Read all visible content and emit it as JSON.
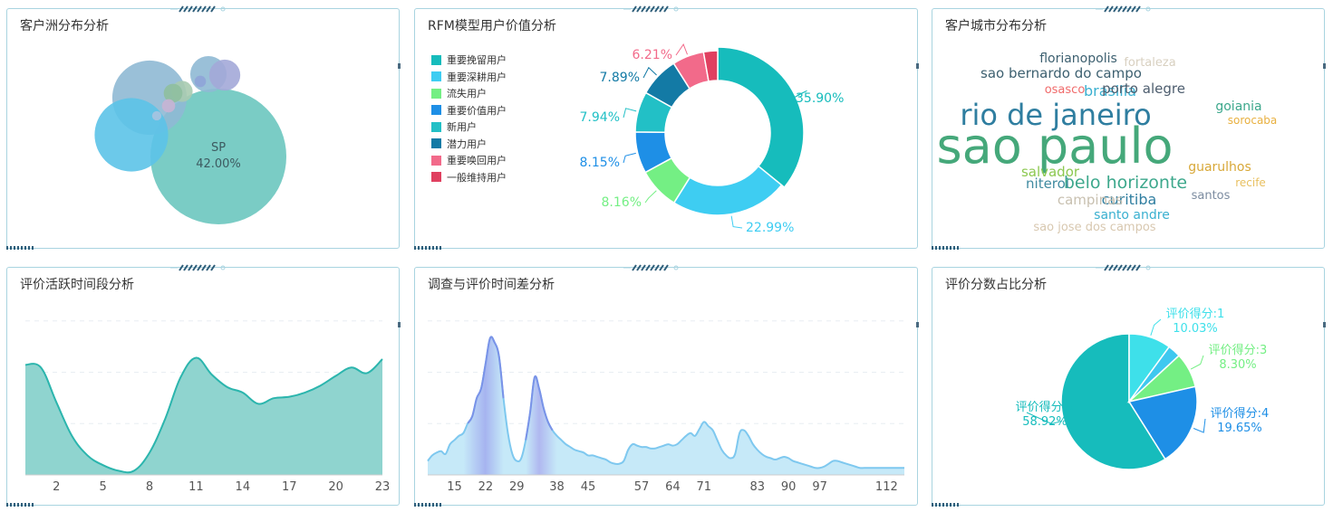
{
  "panels": {
    "continent": {
      "title": "客户洲分布分析"
    },
    "rfm": {
      "title": "RFM模型用户价值分析"
    },
    "city": {
      "title": "客户城市分布分析"
    },
    "active": {
      "title": "评价活跃时间段分析"
    },
    "timediff": {
      "title": "调查与评价时间差分析"
    },
    "score": {
      "title": "评价分数占比分析"
    }
  },
  "colors": {
    "teal": "#2bb5ad",
    "tealFill": "#8fd4cf",
    "border": "#a9d4e0",
    "deco": "#2f5e7a"
  },
  "chart_data": [
    {
      "id": "continent",
      "type": "bubble",
      "title": "客户洲分布分析",
      "series": [
        {
          "name": "SP",
          "value": 42.0,
          "label": "SP",
          "value_label": "42.00%",
          "color": "#6cc7bf"
        },
        {
          "name": "",
          "value": 12.6,
          "color": "#8fb9d4"
        },
        {
          "name": "",
          "value": 12.3,
          "color": "#5cc3e8"
        },
        {
          "name": "",
          "value": 3.0,
          "color": "#8fb9d4"
        },
        {
          "name": "",
          "value": 2.2,
          "color": "#a3a8d8"
        },
        {
          "name": "",
          "value": 1.0,
          "color": "#a9cbb0"
        },
        {
          "name": "",
          "value": 0.8,
          "color": "#8fbf9f"
        },
        {
          "name": "",
          "value": 0.4,
          "color": "#c8b4d4"
        },
        {
          "name": "",
          "value": 0.3,
          "color": "#8fa4d8"
        },
        {
          "name": "",
          "value": 0.2,
          "color": "#a9c4e0"
        }
      ]
    },
    {
      "id": "rfm",
      "type": "pie",
      "subtype": "donut",
      "title": "RFM模型用户价值分析",
      "categories": [
        "重要挽留用户",
        "重要深耕用户",
        "流失用户",
        "重要价值用户",
        "新用户",
        "潜力用户",
        "重要唤回用户",
        "一般维持用户"
      ],
      "values": [
        35.9,
        22.99,
        8.16,
        8.15,
        7.94,
        7.89,
        6.21,
        2.76
      ],
      "labels": [
        "35.90%",
        "22.99%",
        "8.16%",
        "8.15%",
        "7.94%",
        "7.89%",
        "6.21%",
        ""
      ],
      "colors": [
        "#16bcbc",
        "#3ecdf2",
        "#74ef84",
        "#1e8fe6",
        "#22c0c6",
        "#137aa5",
        "#f26a8a",
        "#e04060"
      ],
      "legend": "left"
    },
    {
      "id": "city",
      "type": "wordcloud",
      "title": "客户城市分布分析",
      "words": [
        {
          "text": "sao paulo",
          "color": "#45a87a"
        },
        {
          "text": "rio de janeiro",
          "color": "#2f7ea0"
        },
        {
          "text": "belo horizonte",
          "color": "#3da88c"
        },
        {
          "text": "brasilia",
          "color": "#3ab0d0"
        },
        {
          "text": "porto alegre",
          "color": "#4d5d6e"
        },
        {
          "text": "curitiba",
          "color": "#2f7ea0"
        },
        {
          "text": "campinas",
          "color": "#c8c0b0"
        },
        {
          "text": "salvador",
          "color": "#8cc850"
        },
        {
          "text": "guarulhos",
          "color": "#d8a838"
        },
        {
          "text": "niteroi",
          "color": "#3f8aa0"
        },
        {
          "text": "santo andre",
          "color": "#3ab0d0"
        },
        {
          "text": "goiania",
          "color": "#3da88c"
        },
        {
          "text": "sao bernardo do campo",
          "color": "#3d6070"
        },
        {
          "text": "florianopolis",
          "color": "#3d6070"
        },
        {
          "text": "santos",
          "color": "#7c8ca0"
        },
        {
          "text": "osasco",
          "color": "#f06a6a"
        },
        {
          "text": "sorocaba",
          "color": "#e8b040"
        },
        {
          "text": "recife",
          "color": "#e8c060"
        },
        {
          "text": "fortaleza",
          "color": "#d8d0c0"
        },
        {
          "text": "sao jose dos campos",
          "color": "#d8c8b0"
        }
      ]
    },
    {
      "id": "active",
      "type": "area",
      "title": "评价活跃时间段分析",
      "x": [
        0,
        1,
        2,
        3,
        4,
        5,
        6,
        7,
        8,
        9,
        10,
        11,
        12,
        13,
        14,
        15,
        16,
        17,
        18,
        19,
        20,
        21,
        22,
        23
      ],
      "values": [
        79,
        77,
        52,
        28,
        14,
        7,
        3,
        3,
        16,
        40,
        70,
        84,
        72,
        63,
        59,
        51,
        55,
        56,
        59,
        64,
        71,
        77,
        73,
        83
      ],
      "xticks": [
        "2",
        "5",
        "8",
        "11",
        "14",
        "17",
        "20",
        "23"
      ],
      "xtick_values": [
        2,
        5,
        8,
        11,
        14,
        17,
        20,
        23
      ],
      "ylim": [
        0,
        120
      ],
      "grid": true,
      "color": "#2bb5ad",
      "fill": "#8fd4cf"
    },
    {
      "id": "timediff",
      "type": "area",
      "title": "调查与评价时间差分析",
      "x": [
        9,
        10,
        11,
        12,
        13,
        14,
        15,
        16,
        17,
        18,
        19,
        20,
        21,
        22,
        23,
        24,
        25,
        26,
        27,
        28,
        29,
        30,
        31,
        32,
        33,
        34,
        35,
        36,
        37,
        38,
        39,
        40,
        41,
        42,
        43,
        44,
        45,
        46,
        47,
        48,
        49,
        50,
        51,
        52,
        53,
        54,
        55,
        56,
        57,
        58,
        59,
        60,
        61,
        62,
        63,
        64,
        65,
        66,
        67,
        68,
        69,
        70,
        71,
        72,
        73,
        74,
        75,
        76,
        77,
        78,
        79,
        80,
        81,
        82,
        83,
        84,
        85,
        86,
        87,
        88,
        89,
        90,
        91,
        92,
        93,
        94,
        95,
        96,
        97,
        98,
        99,
        100,
        101,
        102,
        103,
        104,
        105,
        106,
        107,
        108,
        109,
        110,
        111,
        112,
        113,
        114,
        115,
        116
      ],
      "values": [
        10,
        14,
        16,
        17,
        15,
        22,
        25,
        28,
        30,
        37,
        42,
        55,
        62,
        80,
        98,
        95,
        85,
        55,
        30,
        15,
        10,
        12,
        25,
        45,
        70,
        62,
        48,
        38,
        32,
        28,
        25,
        22,
        20,
        18,
        17,
        16,
        14,
        14,
        13,
        12,
        11,
        9,
        8,
        8,
        10,
        18,
        22,
        21,
        20,
        20,
        19,
        19,
        20,
        21,
        22,
        21,
        22,
        25,
        28,
        30,
        28,
        33,
        38,
        35,
        32,
        25,
        18,
        14,
        12,
        15,
        30,
        32,
        28,
        22,
        18,
        15,
        13,
        12,
        11,
        12,
        13,
        12,
        10,
        9,
        8,
        7,
        6,
        5,
        5,
        6,
        8,
        10,
        10,
        9,
        8,
        7,
        6,
        5,
        5,
        5,
        5,
        5,
        5,
        5,
        5,
        5,
        5,
        5
      ],
      "xticks": [
        "15",
        "22",
        "29",
        "38",
        "45",
        "57",
        "64",
        "71",
        "83",
        "90",
        "97",
        "112"
      ],
      "xtick_values": [
        15,
        22,
        29,
        38,
        45,
        57,
        64,
        71,
        83,
        90,
        97,
        112
      ],
      "ylim": [
        0,
        120
      ],
      "grid": true,
      "color": "#7ec8ef",
      "fill": "#b8e4f8",
      "peak_color": "#7a92e8"
    },
    {
      "id": "score",
      "type": "pie",
      "title": "评价分数占比分析",
      "categories": [
        "评价得分:5",
        "评价得分:1",
        "评价得分:2",
        "评价得分:3",
        "评价得分:4"
      ],
      "values": [
        58.92,
        10.03,
        3.1,
        8.3,
        19.65
      ],
      "labels": [
        {
          "name": "评价得分:5",
          "value": "58.92%"
        },
        {
          "name": "评价得分:1",
          "value": "10.03%"
        },
        {
          "name": "",
          "value": ""
        },
        {
          "name": "评价得分:3",
          "value": "8.30%"
        },
        {
          "name": "评价得分:4",
          "value": "19.65%"
        }
      ],
      "colors": [
        "#16bcbc",
        "#3ee0ea",
        "#3ec8f0",
        "#74ef84",
        "#1e8fe6"
      ]
    }
  ]
}
